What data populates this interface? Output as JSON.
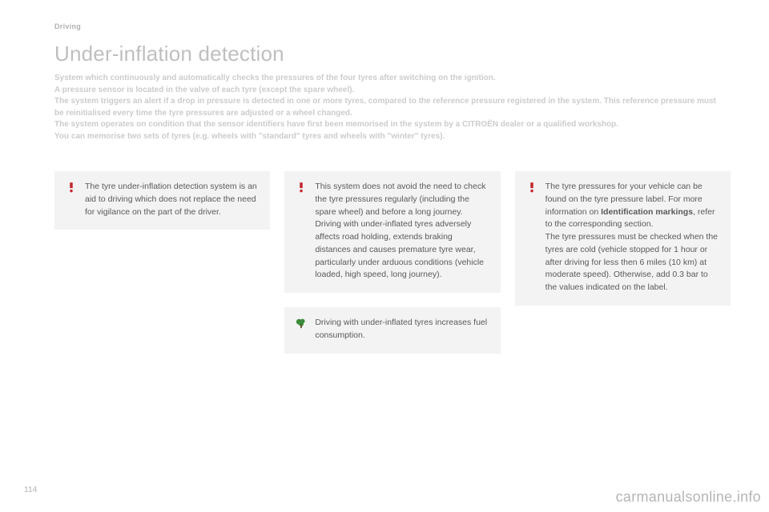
{
  "section_label": "Driving",
  "title": "Under-inflation detection",
  "intro": [
    "System which continuously and automatically checks the pressures of the four tyres after switching on the ignition.",
    "A pressure sensor is located in the valve of each tyre (except the spare wheel).",
    "The system triggers an alert if a drop in pressure is detected in one or more tyres, compared to the reference pressure registered in the system. This reference pressure must be reinitialised every time the tyre pressures are adjusted or a wheel changed.",
    "The system operates on condition that the sensor identifiers have first been memorised in the system by a CITROËN dealer or a qualified workshop.",
    "You can memorise two sets of tyres (e.g. wheels with \"standard\" tyres and wheels with \"winter\" tyres)."
  ],
  "notes": {
    "col1_warn": "The tyre under-inflation detection system is an aid to driving which does not replace the need for vigilance on the part of the driver.",
    "col2_warn": "This system does not avoid the need to check the tyre pressures regularly (including the spare wheel) and before a long journey.\nDriving with under-inflated tyres adversely affects road holding, extends braking distances and causes premature tyre wear, particularly under arduous conditions (vehicle loaded, high speed, long journey).",
    "col2_eco": "Driving with under-inflated tyres increases fuel consumption.",
    "col3_warn_pre": "The tyre pressures for your vehicle can be found on the tyre pressure label. For more information on ",
    "col3_warn_bold": "Identification markings",
    "col3_warn_post": ", refer to the corresponding section.\nThe tyre pressures must be checked when the tyres are cold (vehicle stopped for 1 hour or after driving for less then 6 miles (10 km) at moderate speed). Otherwise, add 0.3 bar to the values indicated on the label."
  },
  "page_number": "114",
  "watermark": "carmanualsonline.info",
  "colors": {
    "note_bg": "#f3f3f3",
    "warn_icon": "#c1272d",
    "eco_icon": "#3a8b3a"
  }
}
